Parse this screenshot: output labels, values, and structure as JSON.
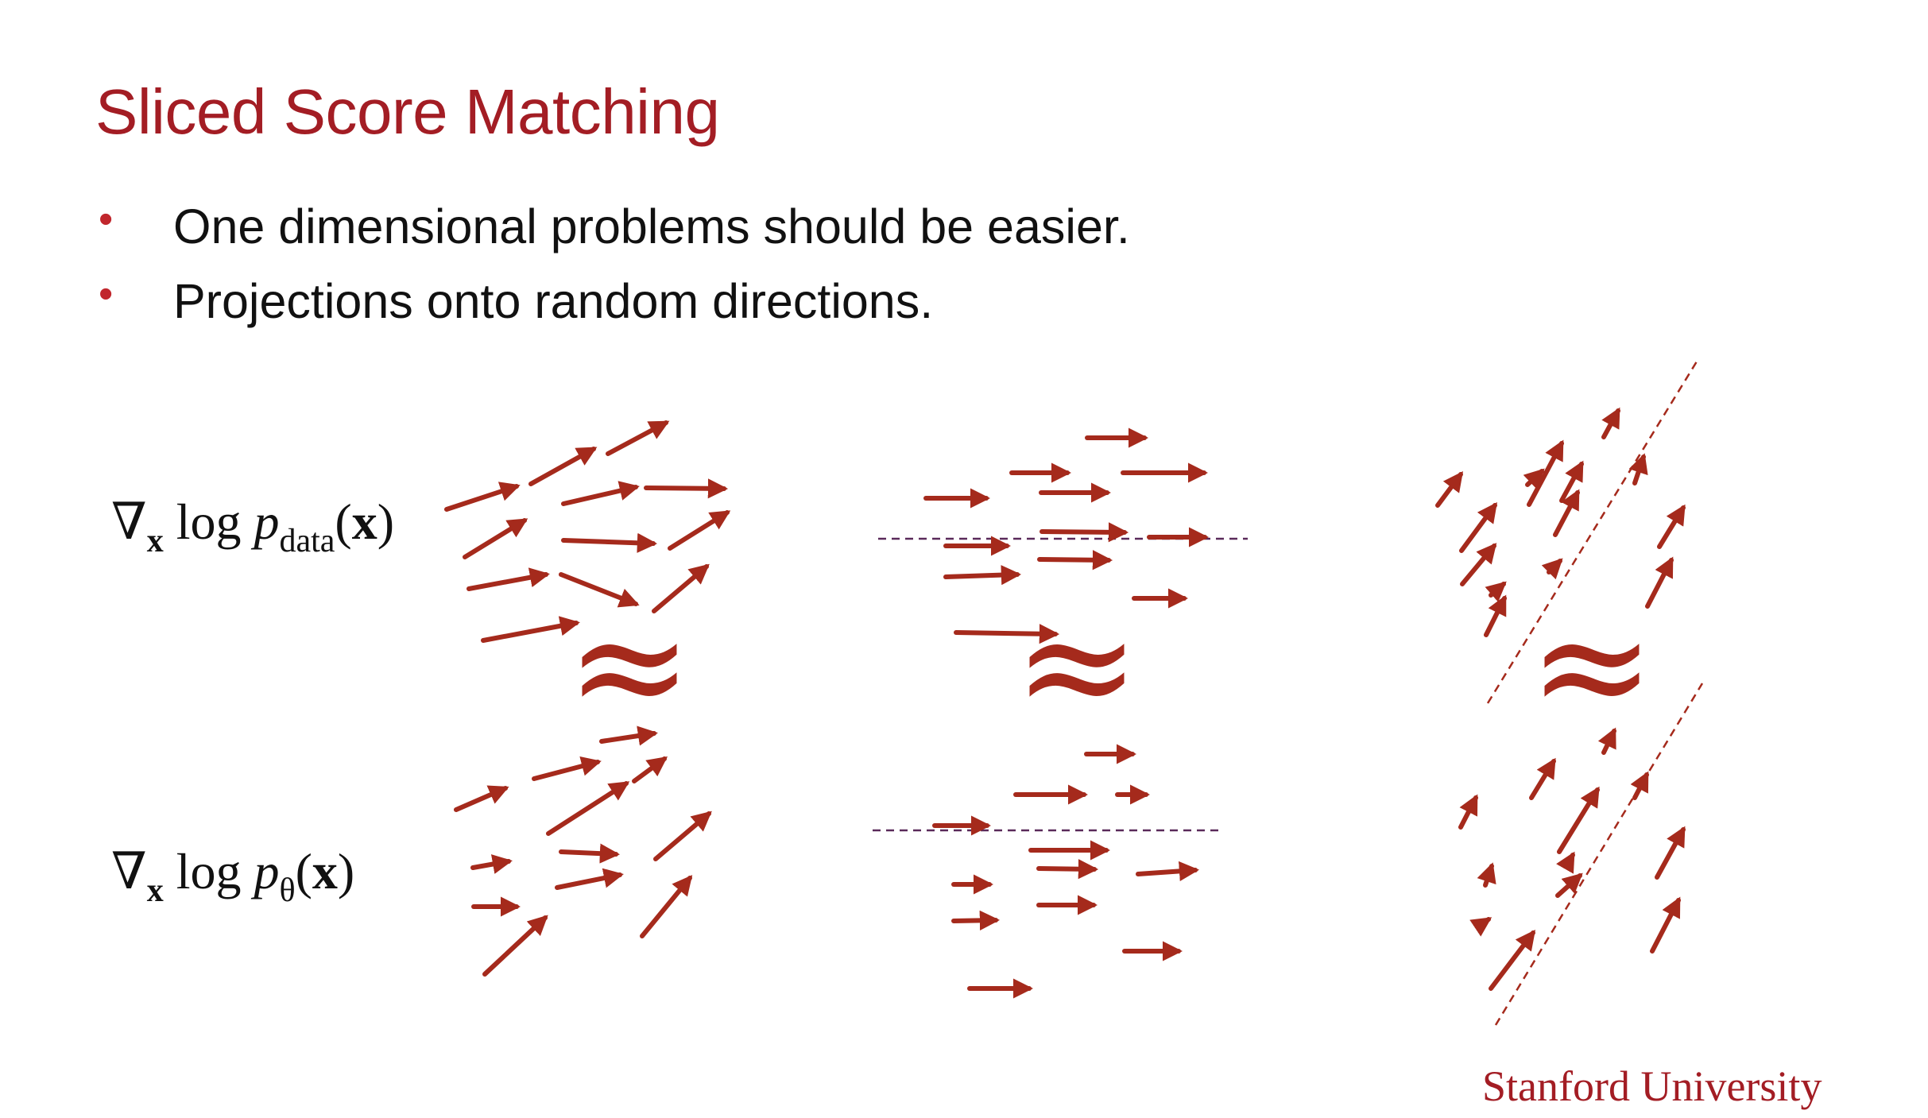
{
  "slide": {
    "title": "Sliced Score Matching",
    "bullets": [
      "One dimensional problems should be easier.",
      "Projections onto random directions."
    ],
    "footer": "Stanford University"
  },
  "formulas": {
    "data": {
      "nabla": "∇",
      "sub": "x",
      "log": " log ",
      "p": "p",
      "p_sub": "data",
      "arg_open": "(",
      "arg": "x",
      "arg_close": ")"
    },
    "model": {
      "nabla": "∇",
      "sub": "x",
      "log": " log ",
      "p": "p",
      "p_sub": "θ",
      "arg_open": "(",
      "arg": "x",
      "arg_close": ")"
    }
  },
  "approx_symbol": "≈",
  "colors": {
    "title": "#a31d24",
    "bullet_dot": "#c1272d",
    "arrow": "#a52a1c",
    "dashed_line": "#5a2a5a",
    "footer": "#a31d24"
  },
  "arrow_icon": "right-arrow-icon"
}
